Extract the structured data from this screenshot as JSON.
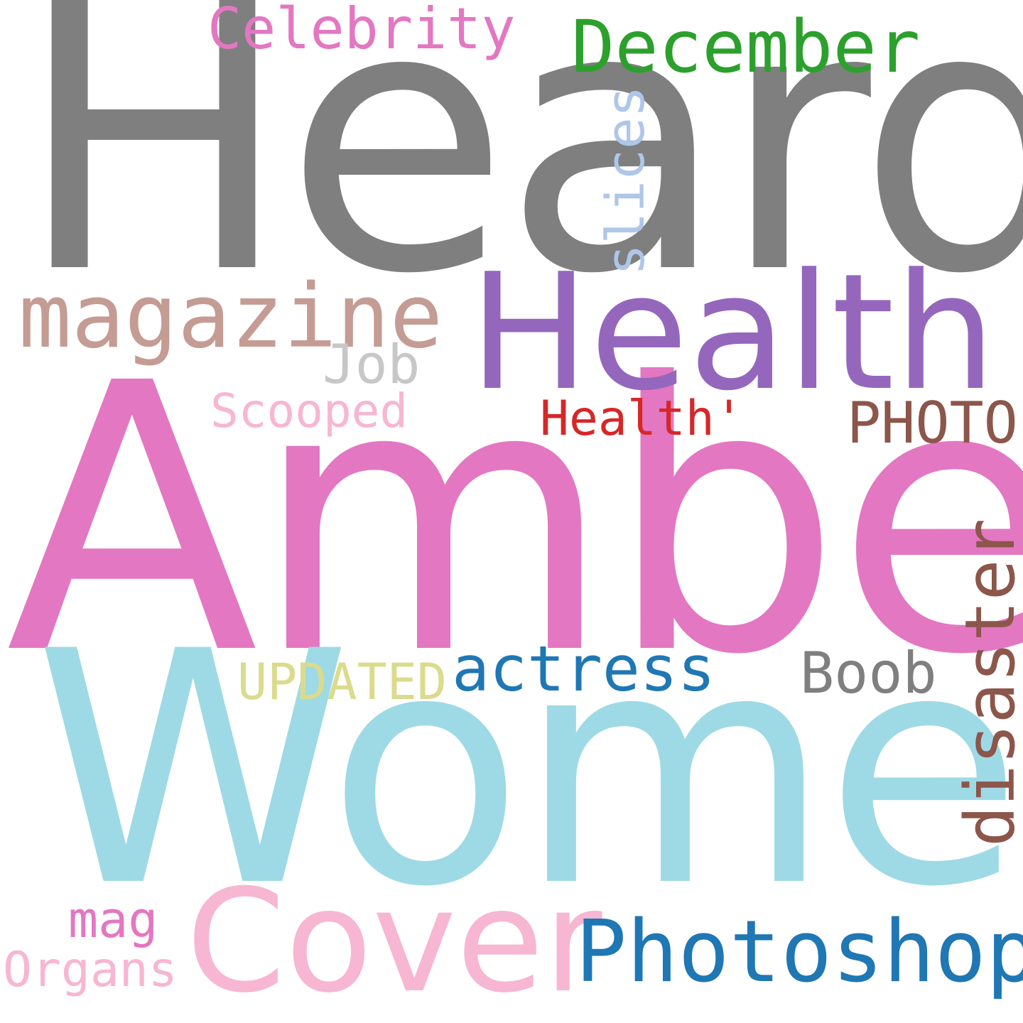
{
  "words": [
    {
      "key": "heard",
      "text": "Heard",
      "color": "#7f7f7f"
    },
    {
      "key": "amber",
      "text": "Amber",
      "color": "#e377c2"
    },
    {
      "key": "women",
      "text": "Women",
      "color": "#9edae5"
    },
    {
      "key": "health",
      "text": "Health",
      "color": "#9467bd"
    },
    {
      "key": "cover",
      "text": "Cover",
      "color": "#f7b6d2"
    },
    {
      "key": "photoshop",
      "text": "Photoshop",
      "color": "#1f77b4"
    },
    {
      "key": "magazine",
      "text": "magazine",
      "color": "#c49c94"
    },
    {
      "key": "december",
      "text": "December",
      "color": "#2ca02c"
    },
    {
      "key": "celebrity",
      "text": "Celebrity",
      "color": "#e377c2"
    },
    {
      "key": "slices",
      "text": "slices",
      "color": "#aec7e8"
    },
    {
      "key": "job",
      "text": "Job",
      "color": "#c7c7c7"
    },
    {
      "key": "scooped",
      "text": "Scooped",
      "color": "#f7b6d2"
    },
    {
      "key": "healthq",
      "text": "Health'",
      "color": "#d62728"
    },
    {
      "key": "photo",
      "text": "PHOTO",
      "color": "#8c564b"
    },
    {
      "key": "actress",
      "text": "actress",
      "color": "#1f77b4"
    },
    {
      "key": "updated",
      "text": "UPDATED",
      "color": "#dbdb8d"
    },
    {
      "key": "boob",
      "text": "Boob",
      "color": "#7f7f7f"
    },
    {
      "key": "disaster",
      "text": "disaster",
      "color": "#8c564b"
    },
    {
      "key": "mag",
      "text": "mag",
      "color": "#e377c2"
    },
    {
      "key": "organs",
      "text": "Organs",
      "color": "#f7b6d2"
    }
  ]
}
